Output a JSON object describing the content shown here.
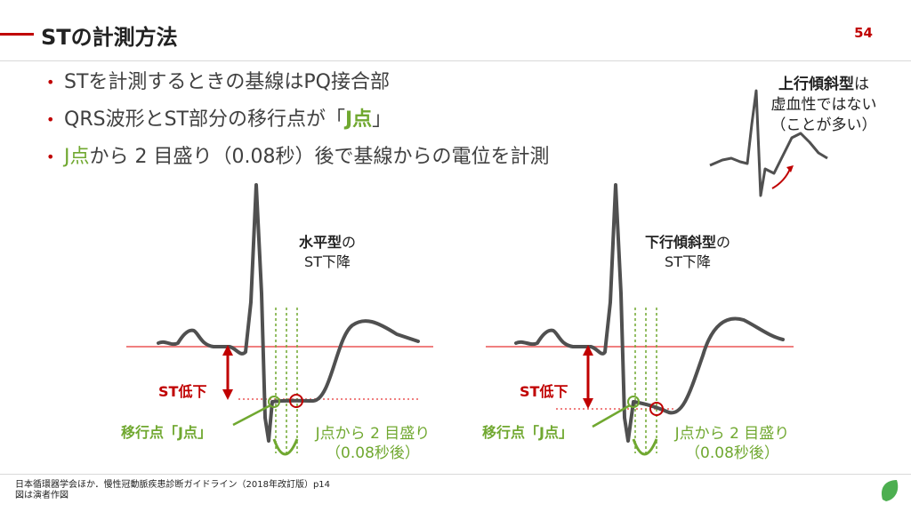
{
  "header": {
    "title": "STの計測方法",
    "page_number": "54"
  },
  "bullets": [
    {
      "text": "STを計測するときの基線はPQ接合部"
    },
    {
      "pre": "QRS波形とST部分の移行点が「",
      "highlight": "J点",
      "post": "」"
    },
    {
      "highlight": "J点",
      "post": "から 2 目盛り（0.08秒）後で基線からの電位を計測"
    }
  ],
  "inset": {
    "line1_bold": "上行傾斜型",
    "line1_rest": "は",
    "line2": "虚血性ではない",
    "line3": "（ことが多い）"
  },
  "left_panel": {
    "type_bold": "水平型",
    "type_rest": "の",
    "type_line2": "ST下降",
    "st_label": "ST低下",
    "transition_label": "移行点「J点」",
    "note_line1": "J点から 2 目盛り",
    "note_line2": "（0.08秒後）"
  },
  "right_panel": {
    "type_bold": "下行傾斜型",
    "type_rest": "の",
    "type_line2": "ST下降",
    "st_label": "ST低下",
    "transition_label": "移行点「J点」",
    "note_line1": "J点から 2 目盛り",
    "note_line2": "（0.08秒後）"
  },
  "footer": {
    "line1": "日本循環器学会ほか．慢性冠動脈疾患診断ガイドライン（2018年改訂版）p14",
    "line2": "図は演者作図"
  },
  "colors": {
    "accent_red": "#c00000",
    "accent_green": "#70a830",
    "waveform": "#505050",
    "baseline": "#f08080"
  }
}
